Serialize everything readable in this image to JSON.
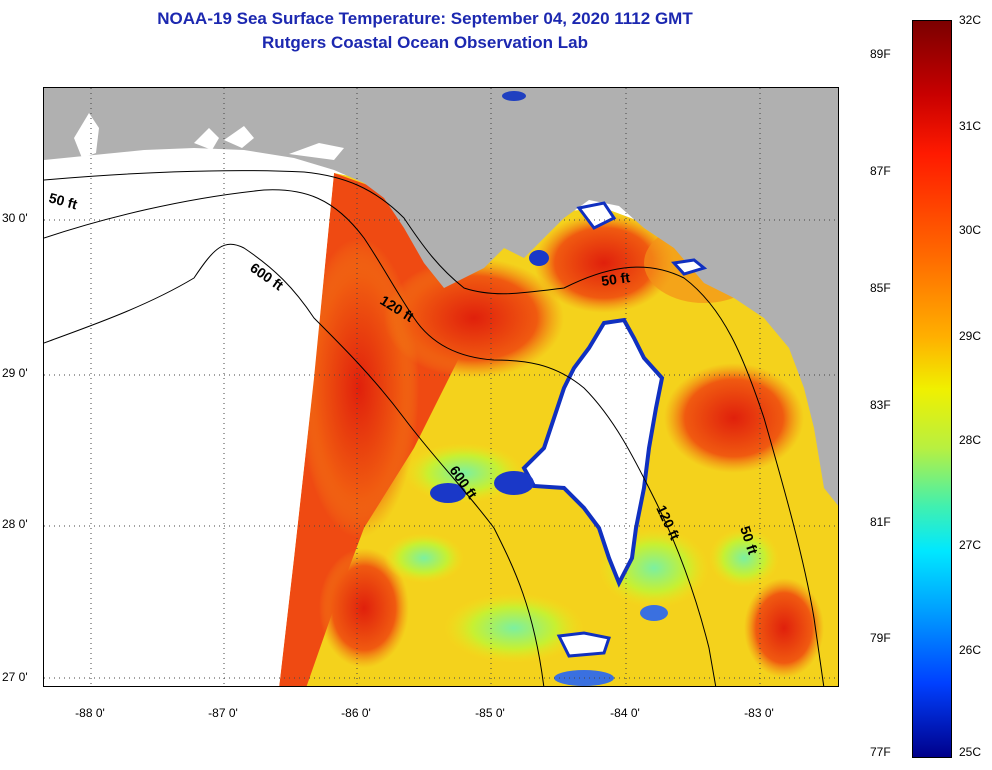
{
  "title": {
    "line1": "NOAA-19 Sea Surface Temperature:  September 04, 2020 1112 GMT",
    "line2": "Rutgers Coastal Ocean Observation Lab"
  },
  "map": {
    "lat_labels": [
      "30 0'",
      "29 0'",
      "28 0'",
      "27 0'"
    ],
    "lon_labels": [
      "-88 0'",
      "-87 0'",
      "-86 0'",
      "-85 0'",
      "-84 0'",
      "-83 0'"
    ],
    "contours": [
      "50 ft",
      "600 ft",
      "120 ft",
      "50 ft",
      "600 ft",
      "120 ft",
      "50 ft"
    ],
    "colors": {
      "land": "#b0b0b0",
      "no_data": "#ffffff",
      "warm": "#e83a10",
      "cool": "#f2e21a",
      "cloud_edge": "#1030c0"
    }
  },
  "colorbar": {
    "fahrenheit": [
      "89F",
      "87F",
      "85F",
      "83F",
      "81F",
      "79F",
      "77F"
    ],
    "celsius": [
      "32C",
      "31C",
      "30C",
      "29C",
      "28C",
      "27C",
      "26C",
      "25C"
    ]
  }
}
